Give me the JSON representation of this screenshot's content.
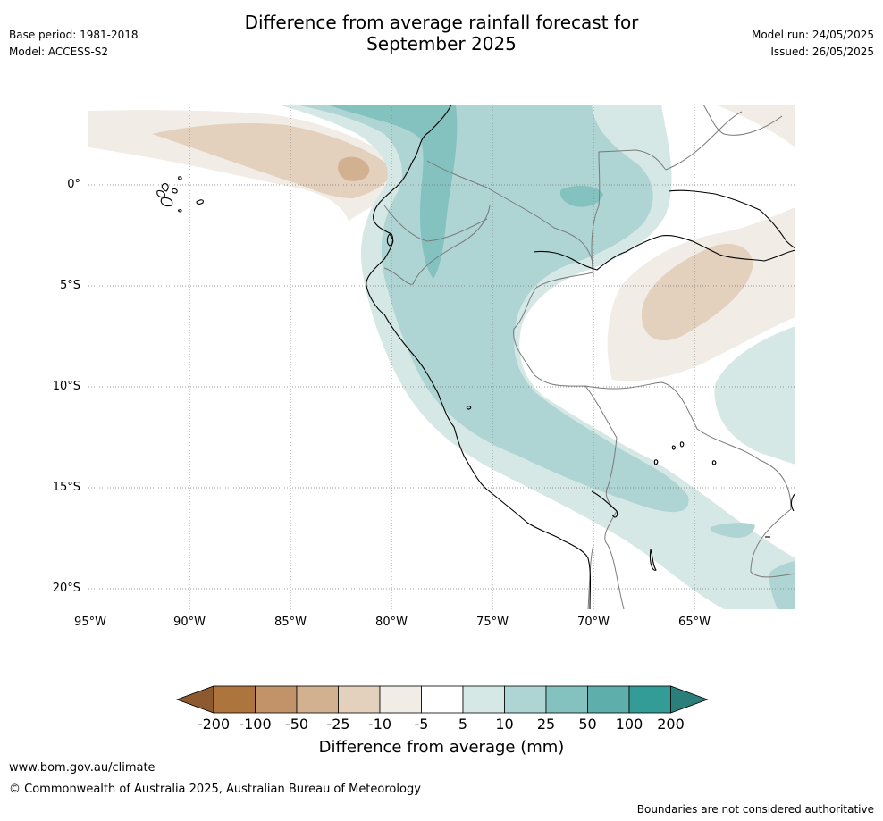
{
  "header": {
    "title_line1": "Difference from average rainfall forecast for",
    "title_line2": "September 2025",
    "base_period": "Base period: 1981-2018",
    "model": "Model: ACCESS-S2",
    "model_run": "Model run: 24/05/2025",
    "issued": "Issued: 26/05/2025"
  },
  "map": {
    "lat_labels": [
      "0°",
      "5°S",
      "10°S",
      "15°S",
      "20°S"
    ],
    "lon_labels": [
      "95°W",
      "90°W",
      "85°W",
      "80°W",
      "75°W",
      "70°W",
      "65°W"
    ]
  },
  "colorbar": {
    "title": "Difference from average (mm)",
    "ticks": [
      "-200",
      "-100",
      "-50",
      "-25",
      "-10",
      "-5",
      "5",
      "10",
      "25",
      "50",
      "100",
      "200"
    ],
    "colors": [
      "#8c5a2e",
      "#ad743e",
      "#c29268",
      "#d2b191",
      "#e3d0bd",
      "#f1ece6",
      "#ffffff",
      "#d5e8e6",
      "#aed5d3",
      "#84c2bf",
      "#5eaeab",
      "#349c97",
      "#2a7f7b"
    ]
  },
  "footer": {
    "website": "www.bom.gov.au/climate",
    "copyright": "© Commonwealth of Australia 2025, Australian Bureau of Meteorology",
    "disclaimer": "Boundaries are not considered authoritative"
  }
}
